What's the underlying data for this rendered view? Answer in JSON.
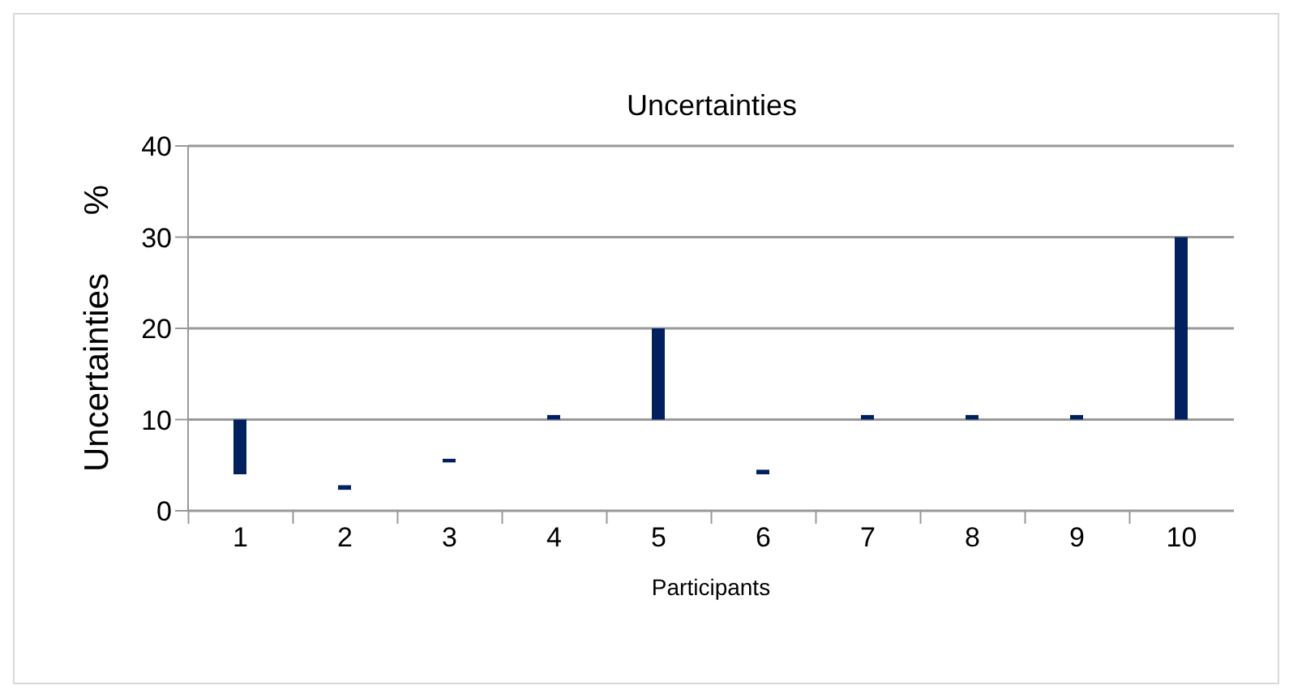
{
  "chart_data": {
    "type": "bar",
    "title": "Uncertainties",
    "xlabel": "Participants",
    "ylabel": "Uncertainties %",
    "categories": [
      "1",
      "2",
      "3",
      "4",
      "5",
      "6",
      "7",
      "8",
      "9",
      "10"
    ],
    "values": [
      6,
      0.5,
      0.4,
      0.5,
      10,
      0.5,
      0.5,
      0.5,
      0.5,
      20
    ],
    "base": [
      4,
      2.3,
      5.3,
      10,
      10,
      4,
      10,
      10,
      10,
      10
    ],
    "color": "#002060",
    "ylim": [
      0,
      40
    ],
    "yticks": [
      0,
      10,
      20,
      30,
      40
    ],
    "grid": "y",
    "legend": false
  }
}
